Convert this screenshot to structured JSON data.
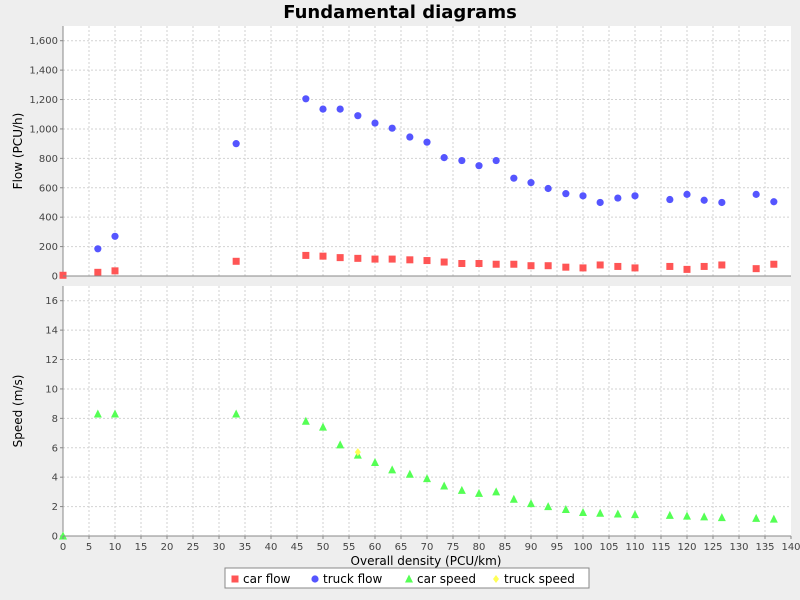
{
  "chart_data": {
    "title": "Fundamental diagrams",
    "x_axis": {
      "label": "Overall density (PCU/km)",
      "range": [
        0,
        140
      ],
      "ticks": [
        0,
        5,
        10,
        15,
        20,
        25,
        30,
        35,
        40,
        45,
        50,
        55,
        60,
        65,
        70,
        75,
        80,
        85,
        90,
        95,
        100,
        105,
        110,
        115,
        120,
        125,
        130,
        135,
        140
      ]
    },
    "grid": true,
    "legend": {
      "position": "bottom",
      "items": [
        {
          "label": "car flow",
          "marker": "square",
          "color": "#ff5555"
        },
        {
          "label": "truck flow",
          "marker": "circle",
          "color": "#5555ff"
        },
        {
          "label": "car speed",
          "marker": "triangle",
          "color": "#55ff55"
        },
        {
          "label": "truck speed",
          "marker": "diamond",
          "color": "#ffff55"
        }
      ]
    },
    "subplots": [
      {
        "type": "scatter",
        "ylabel": "Flow (PCU/h)",
        "ylim": [
          0,
          1700
        ],
        "yticks": [
          {
            "v": 0,
            "label": "0"
          },
          {
            "v": 200,
            "label": "200"
          },
          {
            "v": 400,
            "label": "400"
          },
          {
            "v": 600,
            "label": "600"
          },
          {
            "v": 800,
            "label": "800"
          },
          {
            "v": 1000,
            "label": "1,000"
          },
          {
            "v": 1200,
            "label": "1,200"
          },
          {
            "v": 1400,
            "label": "1,400"
          },
          {
            "v": 1600,
            "label": "1,600"
          }
        ],
        "series": [
          {
            "name": "car flow",
            "marker": "square",
            "color": "#ff5555",
            "x": [
              0,
              6.7,
              10,
              33.3,
              46.7,
              50,
              53.3,
              56.7,
              60,
              63.3,
              66.7,
              70,
              73.3,
              76.7,
              80,
              83.3,
              86.7,
              90,
              93.3,
              96.7,
              100,
              103.3,
              106.7,
              110,
              116.7,
              120,
              123.3,
              126.7,
              133.3,
              136.7
            ],
            "y": [
              5,
              25,
              35,
              100,
              140,
              135,
              125,
              120,
              115,
              115,
              110,
              105,
              95,
              85,
              85,
              80,
              80,
              70,
              70,
              60,
              55,
              75,
              65,
              55,
              65,
              45,
              65,
              75,
              50,
              80
            ]
          },
          {
            "name": "truck flow",
            "marker": "circle",
            "color": "#5555ff",
            "x": [
              6.7,
              10,
              33.3,
              46.7,
              50,
              53.3,
              56.7,
              60,
              63.3,
              66.7,
              70,
              73.3,
              76.7,
              80,
              83.3,
              86.7,
              90,
              93.3,
              96.7,
              100,
              103.3,
              106.7,
              110,
              116.7,
              120,
              123.3,
              126.7,
              133.3,
              136.7
            ],
            "y": [
              185,
              270,
              900,
              1205,
              1135,
              1135,
              1090,
              1040,
              1005,
              945,
              910,
              805,
              785,
              750,
              785,
              665,
              635,
              595,
              560,
              545,
              500,
              530,
              545,
              520,
              555,
              515,
              500,
              555,
              505
            ]
          }
        ]
      },
      {
        "type": "scatter",
        "ylabel": "Speed (m/s)",
        "ylim": [
          0,
          17
        ],
        "yticks": [
          {
            "v": 0,
            "label": "0"
          },
          {
            "v": 2,
            "label": "2"
          },
          {
            "v": 4,
            "label": "4"
          },
          {
            "v": 6,
            "label": "6"
          },
          {
            "v": 8,
            "label": "8"
          },
          {
            "v": 10,
            "label": "10"
          },
          {
            "v": 12,
            "label": "12"
          },
          {
            "v": 14,
            "label": "14"
          },
          {
            "v": 16,
            "label": "16"
          }
        ],
        "series": [
          {
            "name": "car speed",
            "marker": "triangle",
            "color": "#55ff55",
            "x": [
              0,
              6.7,
              10,
              33.3,
              46.7,
              50,
              53.3,
              56.7,
              60,
              63.3,
              66.7,
              70,
              73.3,
              76.7,
              80,
              83.3,
              86.7,
              90,
              93.3,
              96.7,
              100,
              103.3,
              106.7,
              110,
              116.7,
              120,
              123.3,
              126.7,
              133.3,
              136.7
            ],
            "y": [
              0,
              8.3,
              8.3,
              8.3,
              7.8,
              7.4,
              6.2,
              5.5,
              5.0,
              4.5,
              4.2,
              3.9,
              3.4,
              3.1,
              2.9,
              3.0,
              2.5,
              2.2,
              2.0,
              1.8,
              1.6,
              1.55,
              1.5,
              1.45,
              1.4,
              1.35,
              1.3,
              1.25,
              1.2,
              1.15
            ]
          },
          {
            "name": "truck speed",
            "marker": "diamond",
            "color": "#ffff55",
            "x": [
              56.7
            ],
            "y": [
              5.7
            ]
          }
        ]
      }
    ]
  }
}
